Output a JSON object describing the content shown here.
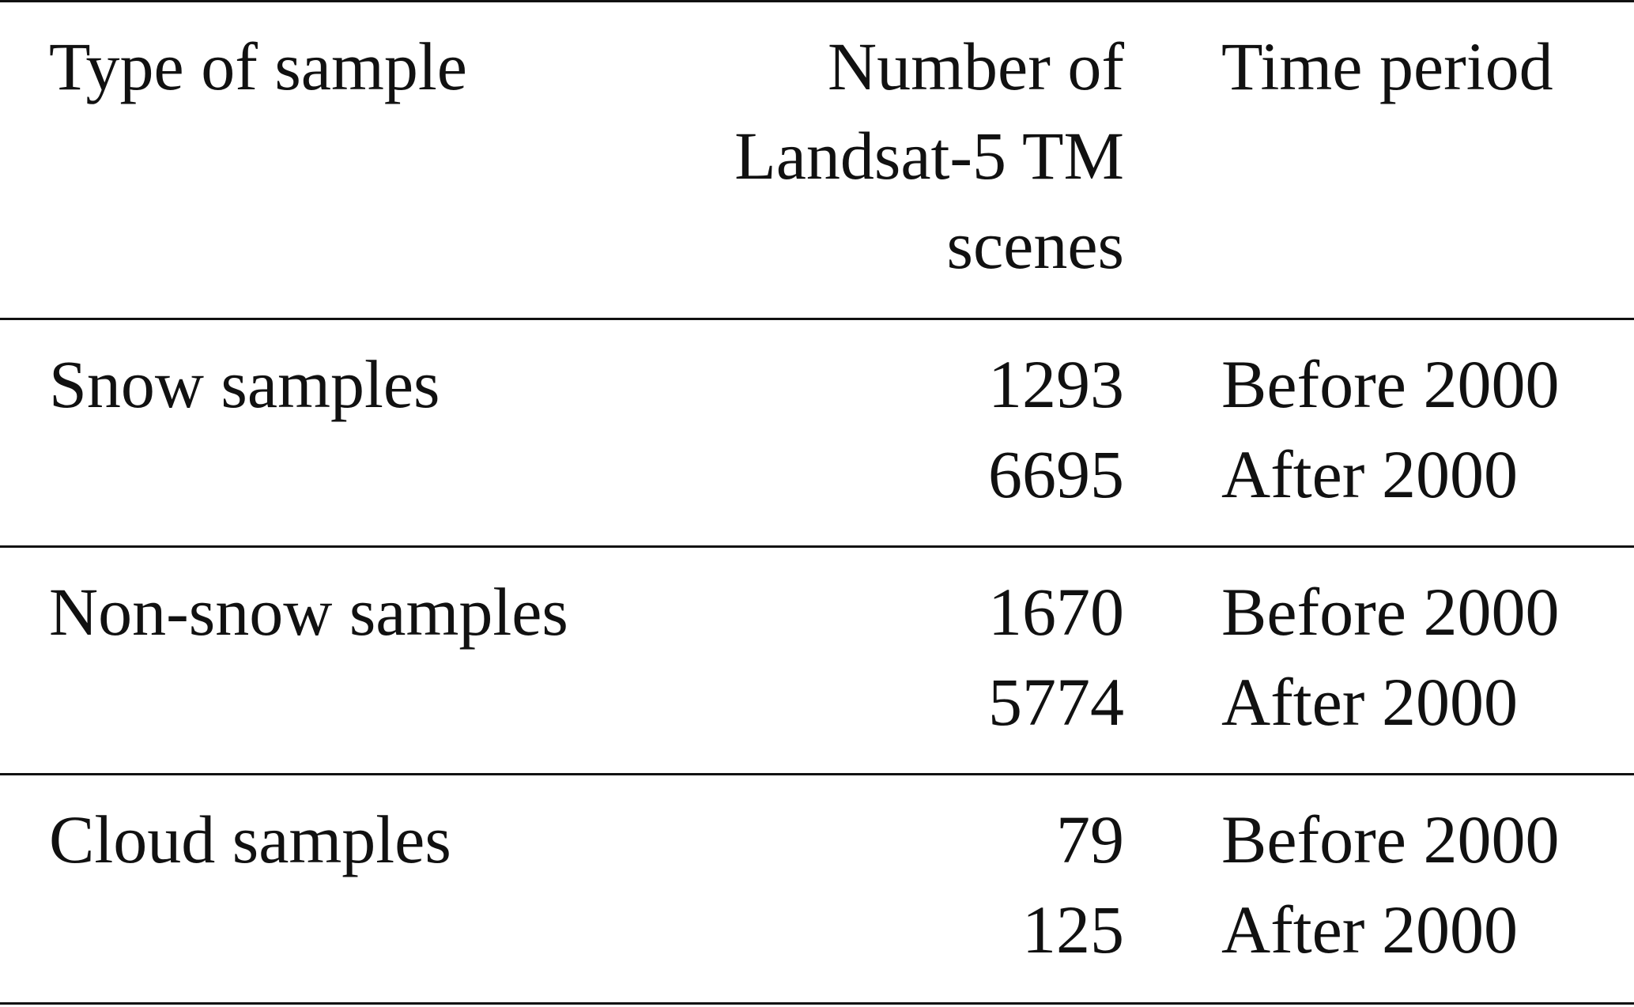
{
  "table": {
    "headers": {
      "type": "Type of sample",
      "number_lines": [
        "Number of",
        "Landsat-5 TM",
        "scenes"
      ],
      "time": "Time period"
    },
    "groups": [
      {
        "type": "Snow samples",
        "rows": [
          {
            "number": "1293",
            "time": "Before 2000"
          },
          {
            "number": "6695",
            "time": "After 2000"
          }
        ]
      },
      {
        "type": "Non-snow samples",
        "rows": [
          {
            "number": "1670",
            "time": "Before 2000"
          },
          {
            "number": "5774",
            "time": "After 2000"
          }
        ]
      },
      {
        "type": "Cloud samples",
        "rows": [
          {
            "number": "79",
            "time": "Before 2000"
          },
          {
            "number": "125",
            "time": "After 2000"
          }
        ]
      }
    ]
  }
}
